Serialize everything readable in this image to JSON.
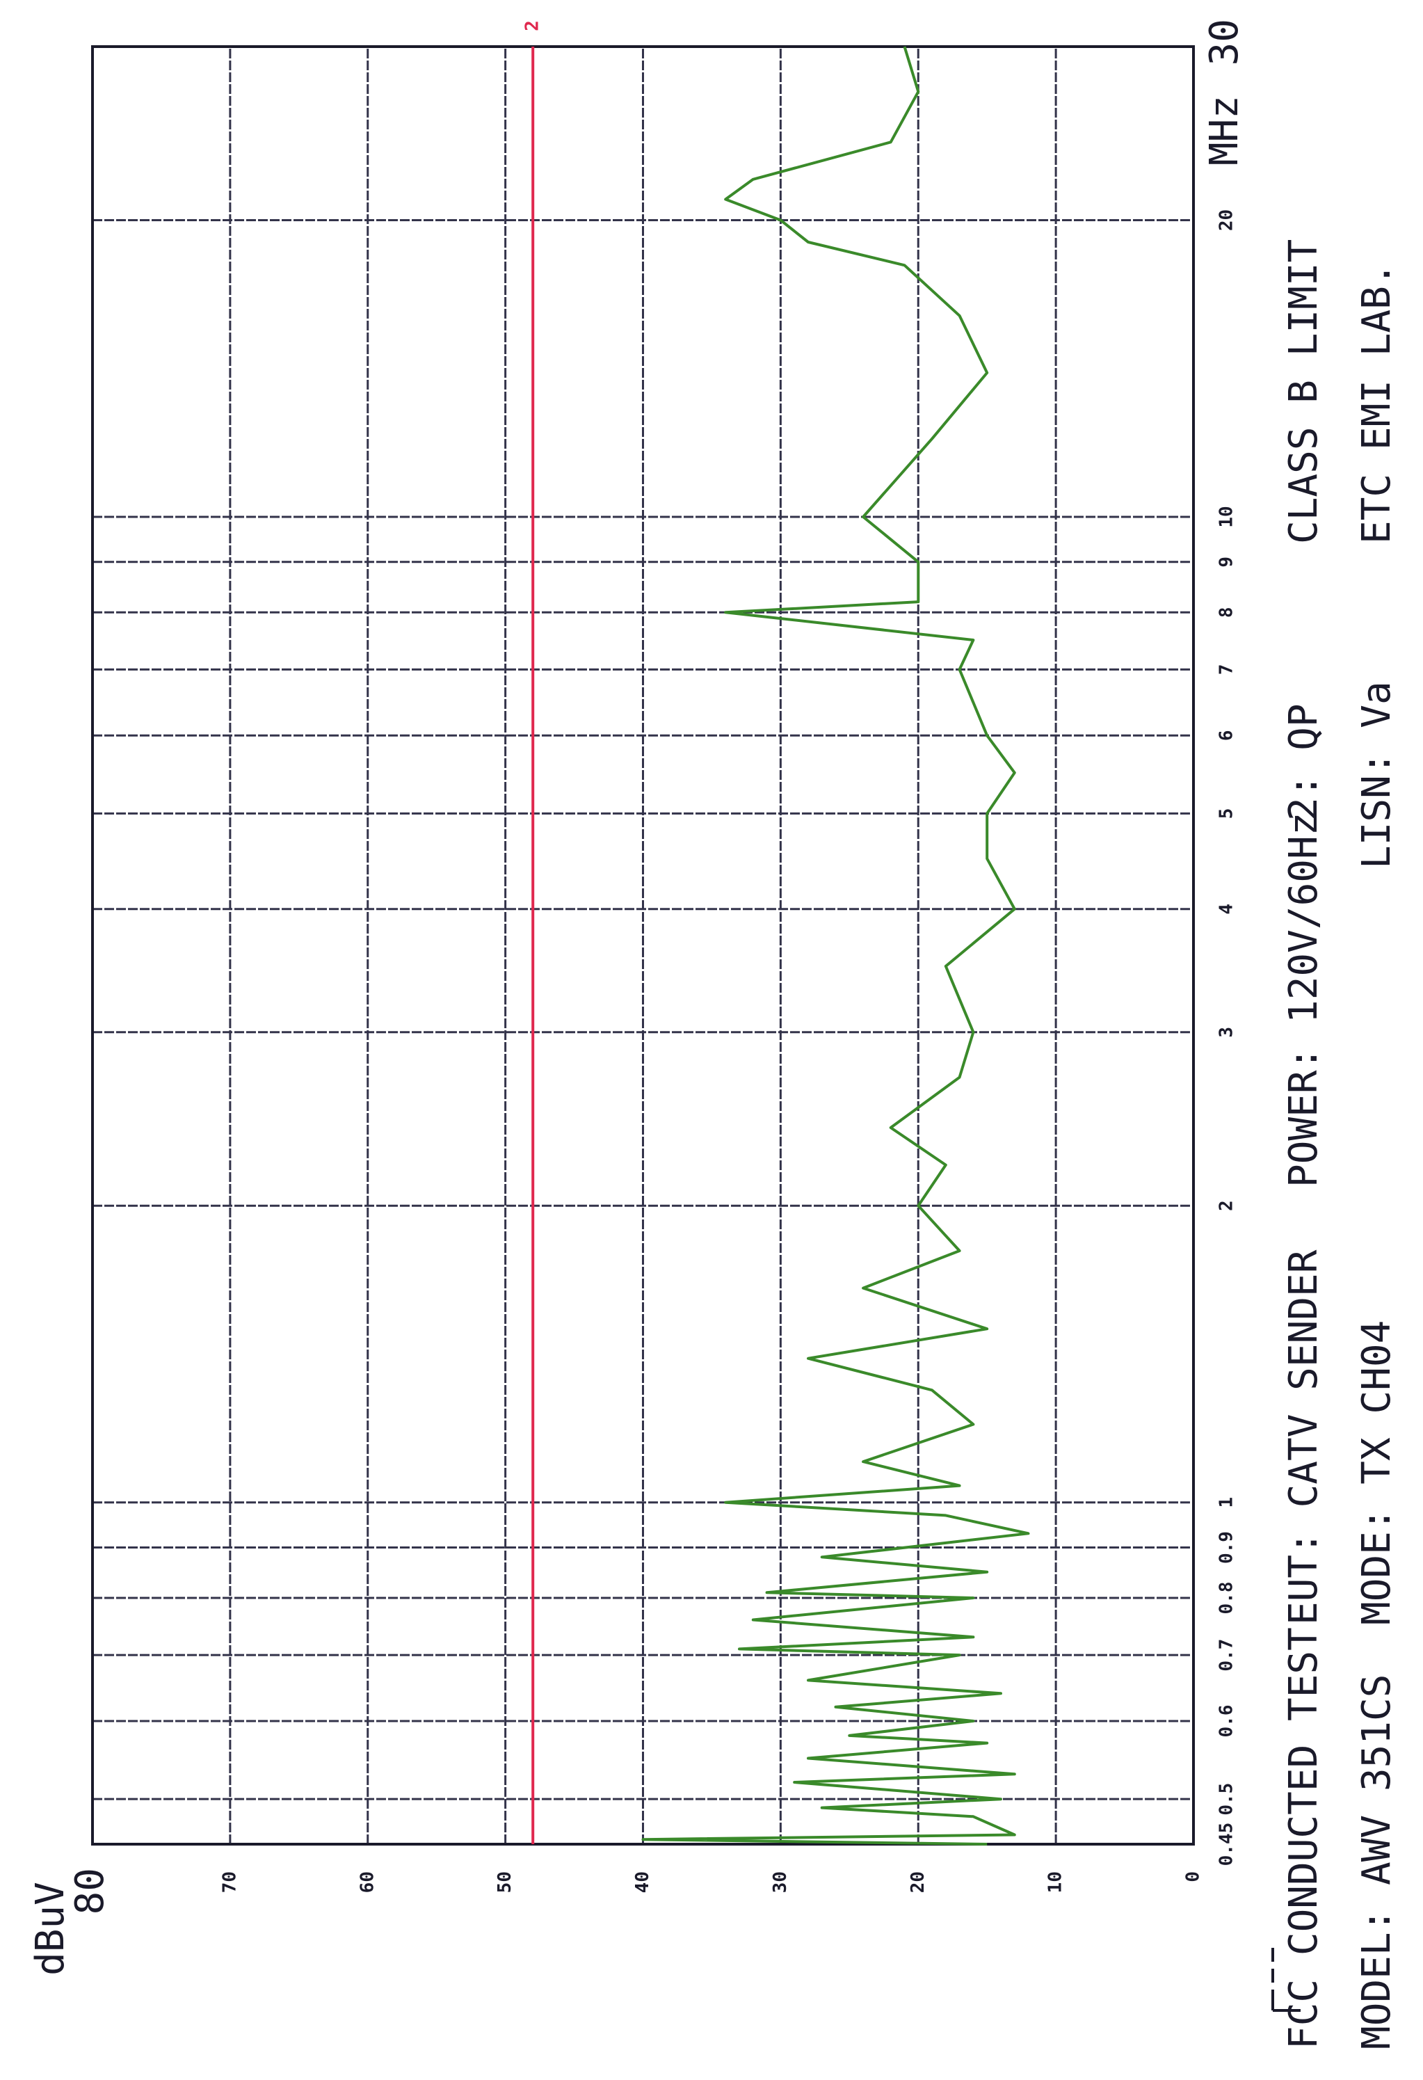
{
  "chart_data": {
    "type": "line",
    "y_label": "dBuV",
    "x_unit": "MHz",
    "xscale": "log",
    "xlim": [
      0.45,
      30
    ],
    "xticks": [
      0.45,
      0.5,
      0.6,
      0.7,
      0.8,
      0.9,
      1,
      2,
      3,
      4,
      5,
      6,
      7,
      8,
      9,
      10,
      20,
      30
    ],
    "ylim": [
      0,
      80
    ],
    "yticks": [
      0,
      10,
      20,
      30,
      40,
      50,
      60,
      70,
      80
    ],
    "grid": true,
    "limit": {
      "value": 48,
      "label": "2",
      "color": "#e0284e"
    },
    "x": [
      0.45,
      0.455,
      0.46,
      0.48,
      0.49,
      0.5,
      0.52,
      0.53,
      0.55,
      0.57,
      0.58,
      0.6,
      0.62,
      0.64,
      0.66,
      0.7,
      0.71,
      0.73,
      0.76,
      0.8,
      0.81,
      0.85,
      0.88,
      0.93,
      0.97,
      1.0,
      1.04,
      1.1,
      1.2,
      1.3,
      1.4,
      1.5,
      1.65,
      1.8,
      2.0,
      2.2,
      2.4,
      2.7,
      3.0,
      3.5,
      4.0,
      4.5,
      5.0,
      5.5,
      6.0,
      7.0,
      7.5,
      8.0,
      8.2,
      9.0,
      10,
      12,
      14,
      16,
      18,
      19,
      20,
      21,
      22,
      24,
      27,
      30
    ],
    "values": [
      15,
      40,
      13,
      16,
      27,
      14,
      29,
      13,
      28,
      15,
      25,
      16,
      26,
      14,
      28,
      17,
      33,
      16,
      32,
      16,
      31,
      15,
      27,
      12,
      18,
      34,
      17,
      24,
      16,
      19,
      28,
      15,
      24,
      17,
      20,
      18,
      22,
      17,
      16,
      18,
      13,
      15,
      15,
      13,
      15,
      17,
      16,
      34,
      20,
      20,
      24,
      19,
      15,
      17,
      21,
      28,
      30,
      34,
      32,
      22,
      20,
      21
    ],
    "color": "#3a8a2a",
    "annotations": [
      "FCC CONDUCTED TEST",
      "MODEL: AWV 351CS",
      "EUT: CATV SENDER",
      "MODE: TX CH04",
      "POWER: 120V/60Hz",
      "2: QP",
      "LISN: Va",
      "CLASS B LIMIT",
      "ETC EMI LAB."
    ]
  }
}
